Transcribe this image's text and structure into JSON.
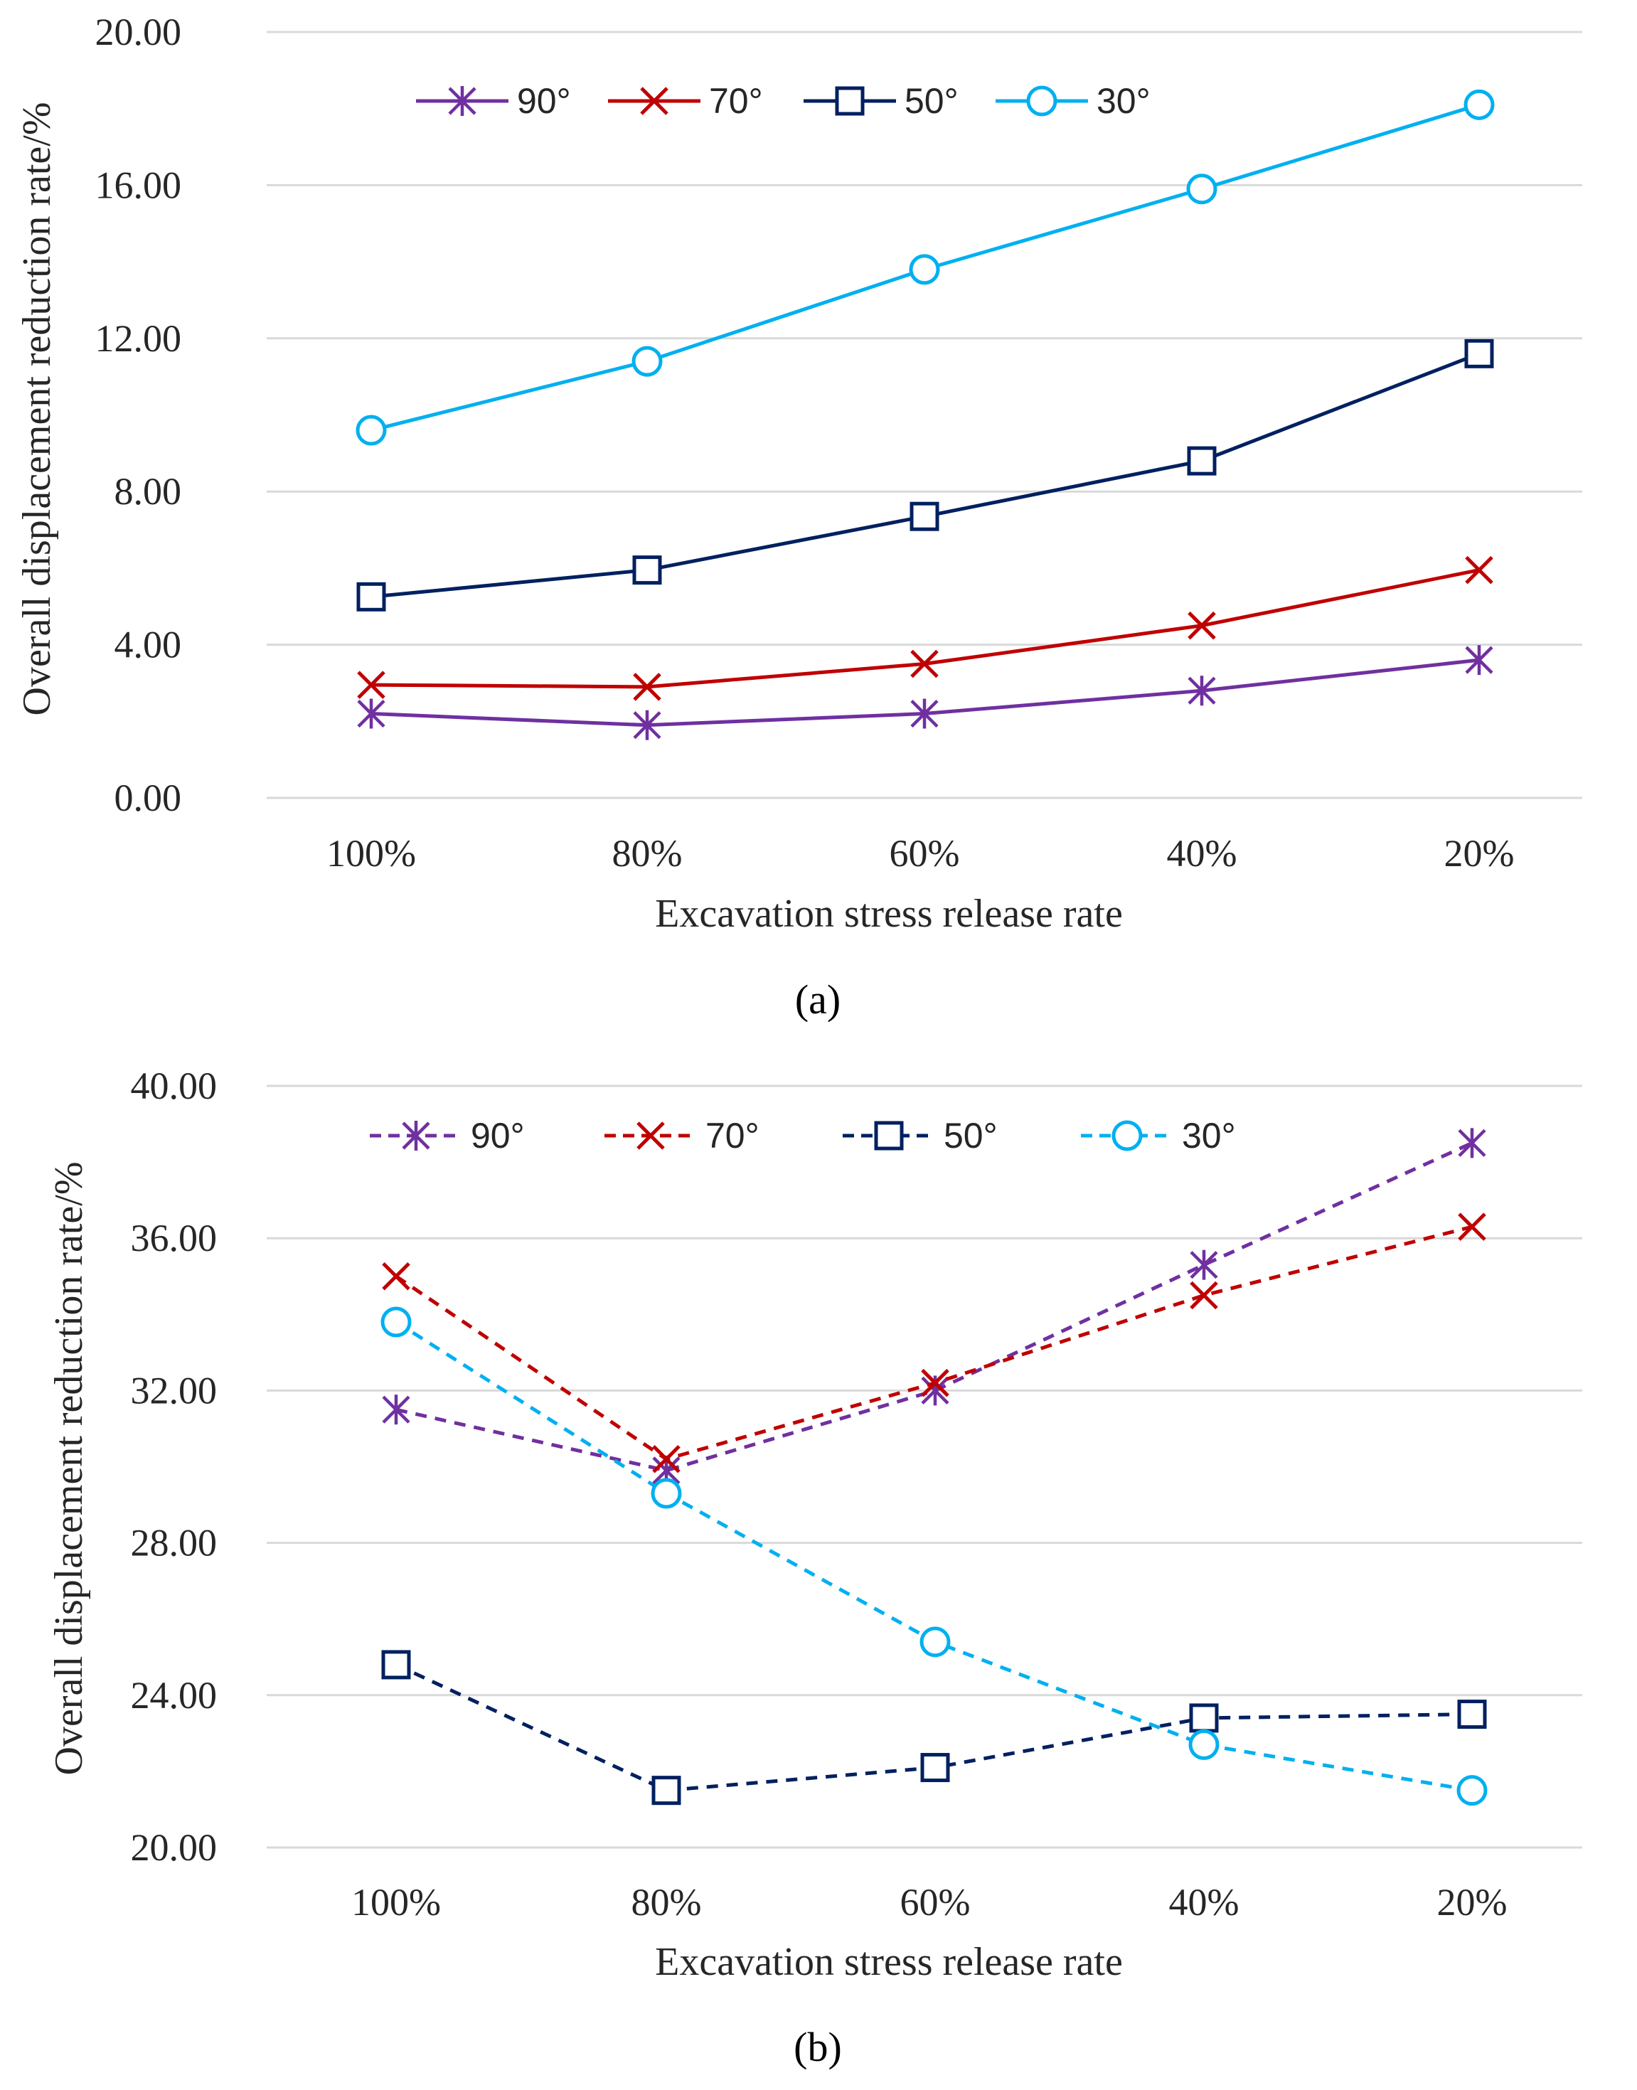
{
  "figure": {
    "panels": [
      "(a)",
      "(b)"
    ]
  },
  "chart_data": [
    {
      "type": "line",
      "panel_label": "(a)",
      "line_style": "solid",
      "categories": [
        "100%",
        "80%",
        "60%",
        "40%",
        "20%"
      ],
      "xlabel": "Excavation stress release rate",
      "ylabel": "Overall displacement reduction rate/%",
      "ylim": [
        0,
        20
      ],
      "yticks": [
        "0.00",
        "4.00",
        "8.00",
        "12.00",
        "16.00",
        "20.00"
      ],
      "grid": true,
      "legend_position": "top",
      "series": [
        {
          "name": "90°",
          "marker": "asterisk",
          "color": "#7030A0",
          "values": [
            2.2,
            1.9,
            2.2,
            2.8,
            3.6
          ]
        },
        {
          "name": "70°",
          "marker": "x",
          "color": "#C00000",
          "values": [
            2.95,
            2.9,
            3.5,
            4.5,
            5.95
          ]
        },
        {
          "name": "50°",
          "marker": "square",
          "color": "#002060",
          "values": [
            5.25,
            5.95,
            7.35,
            8.8,
            11.6
          ]
        },
        {
          "name": "30°",
          "marker": "circle",
          "color": "#00B0F0",
          "values": [
            9.6,
            11.4,
            13.8,
            15.9,
            18.1
          ]
        }
      ]
    },
    {
      "type": "line",
      "panel_label": "(b)",
      "line_style": "dashed",
      "categories": [
        "100%",
        "80%",
        "60%",
        "40%",
        "20%"
      ],
      "xlabel": "Excavation stress release rate",
      "ylabel": "Overall displacement reduction rate/%",
      "ylim": [
        20,
        40
      ],
      "yticks": [
        "20.00",
        "24.00",
        "28.00",
        "32.00",
        "36.00",
        "40.00"
      ],
      "grid": true,
      "legend_position": "top",
      "series": [
        {
          "name": "90°",
          "marker": "asterisk",
          "color": "#7030A0",
          "values": [
            31.5,
            29.9,
            32.0,
            35.3,
            38.5
          ]
        },
        {
          "name": "70°",
          "marker": "x",
          "color": "#C00000",
          "values": [
            35.0,
            30.2,
            32.2,
            34.5,
            36.3
          ]
        },
        {
          "name": "50°",
          "marker": "square",
          "color": "#002060",
          "values": [
            24.8,
            21.5,
            22.1,
            23.4,
            23.5
          ]
        },
        {
          "name": "30°",
          "marker": "circle",
          "color": "#00B0F0",
          "values": [
            33.8,
            29.3,
            25.4,
            22.7,
            21.5
          ]
        }
      ]
    }
  ]
}
